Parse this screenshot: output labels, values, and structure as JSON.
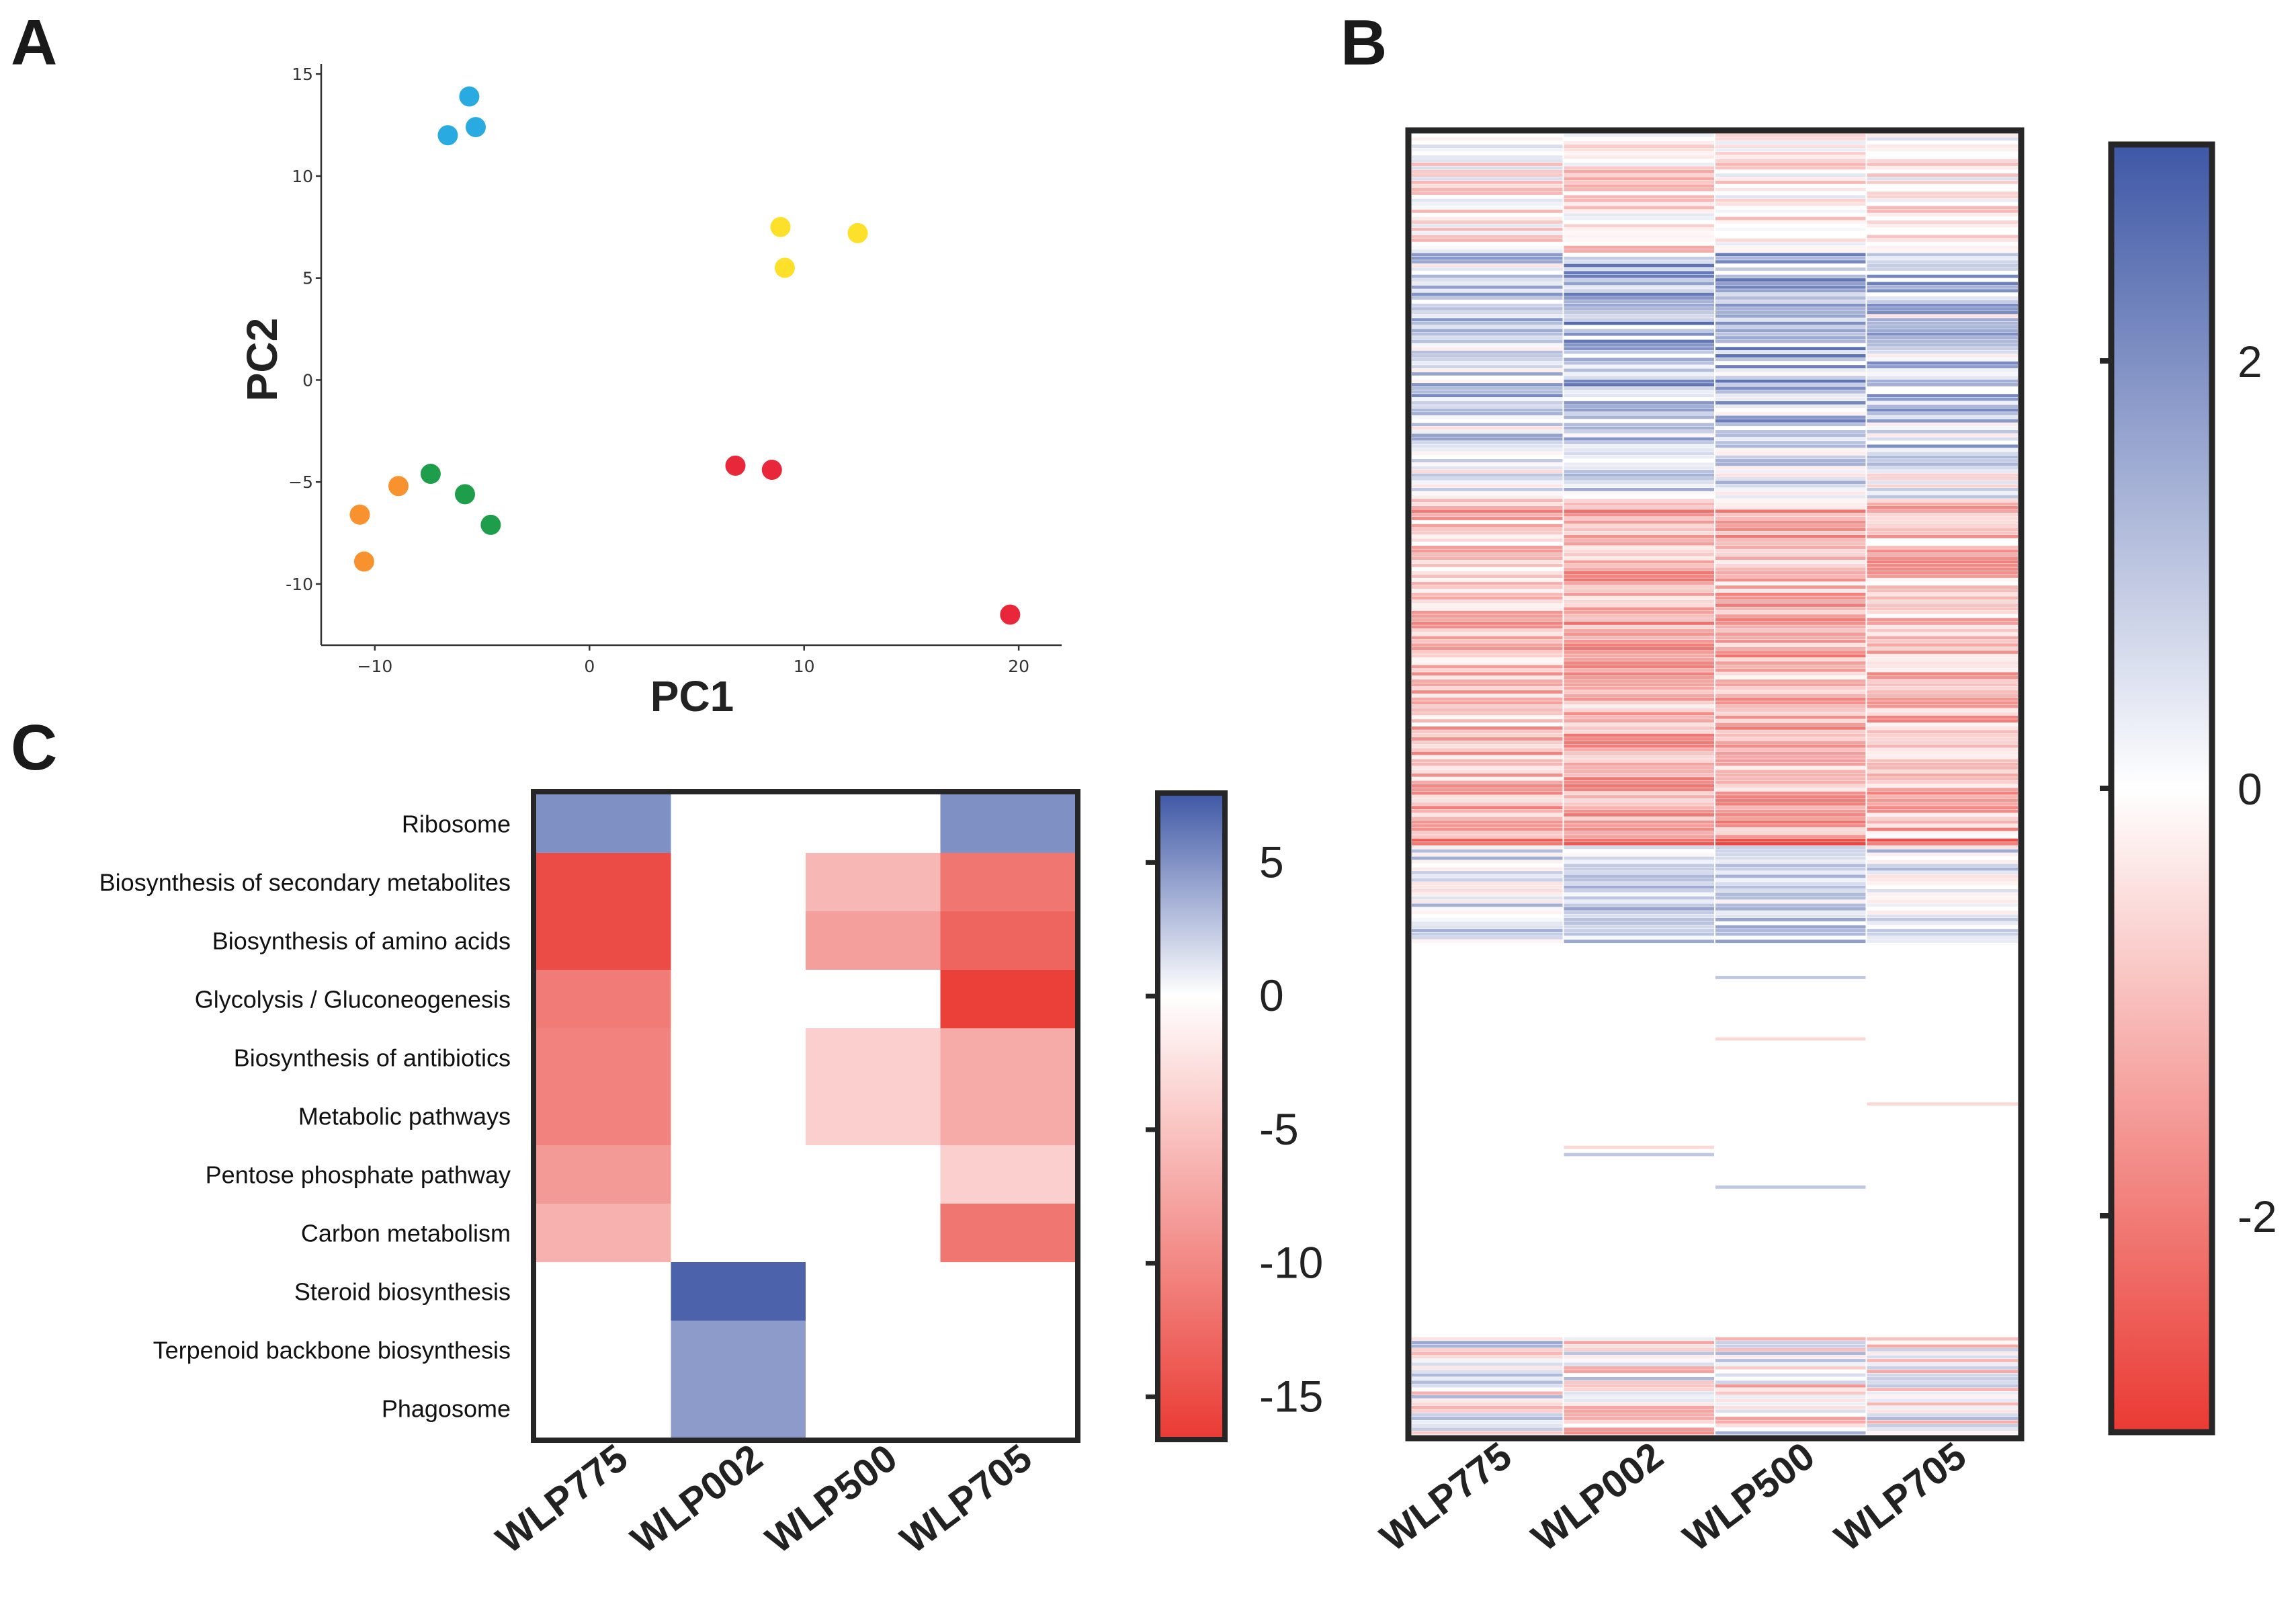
{
  "figure": {
    "panel_letters": [
      "A",
      "B",
      "C"
    ]
  },
  "colors": {
    "blue": "#3f58a6",
    "white": "#ffffff",
    "red": "#ea3a33",
    "frame": "#262626"
  },
  "chart_data": [
    {
      "panel": "A",
      "type": "scatter",
      "title": "",
      "xlabel": "PC1",
      "ylabel": "PC2",
      "xlim": [
        -12.5,
        22
      ],
      "ylim": [
        -13,
        15.5
      ],
      "xticks": [
        -10,
        0,
        10,
        20
      ],
      "xtick_labels": [
        "−10",
        "0",
        "10",
        "20"
      ],
      "yticks": [
        15,
        10,
        5,
        0,
        -5,
        -10
      ],
      "ytick_labels": [
        "15",
        "10",
        "5",
        "0",
        "−5",
        "-10"
      ],
      "legend": "none",
      "series": [
        {
          "name": "blue",
          "color": "#29abe2",
          "x": [
            -5.6,
            -6.6,
            -5.3
          ],
          "y": [
            13.9,
            12.0,
            12.4
          ]
        },
        {
          "name": "yellow",
          "color": "#fde02a",
          "x": [
            8.9,
            12.5,
            9.1
          ],
          "y": [
            7.5,
            7.2,
            5.5
          ]
        },
        {
          "name": "green",
          "color": "#1e9e4a",
          "x": [
            -7.4,
            -5.8,
            -4.6
          ],
          "y": [
            -4.6,
            -5.6,
            -7.1
          ]
        },
        {
          "name": "orange",
          "color": "#f7922f",
          "x": [
            -8.9,
            -10.7,
            -10.5
          ],
          "y": [
            -5.2,
            -6.6,
            -8.9
          ]
        },
        {
          "name": "red",
          "color": "#e8283a",
          "x": [
            6.8,
            8.5,
            19.6
          ],
          "y": [
            -4.2,
            -4.4,
            -11.5
          ]
        }
      ]
    },
    {
      "panel": "B",
      "type": "heatmap",
      "description_note": "Gene-level z-scores, one column per strain; rows rendered as stripes",
      "columns": [
        "WLP775",
        "WLP002",
        "WLP500",
        "WLP705"
      ],
      "colorbar": {
        "range": [
          -3,
          3
        ],
        "ticks": [
          2,
          0,
          -2
        ],
        "tick_labels": [
          "2",
          "0",
          "-2"
        ]
      },
      "n_rows": 360,
      "row_values": {
        "WLP775": "see strip data in script",
        "WLP002": "see strip data in script",
        "WLP500": "see strip data in script",
        "WLP705": "see strip data in script"
      }
    },
    {
      "panel": "C",
      "type": "heatmap",
      "rows": [
        "Ribosome",
        "Biosynthesis of secondary metabolites",
        "Biosynthesis of amino acids",
        "Glycolysis / Gluconeogenesis",
        "Biosynthesis of antibiotics",
        "Metabolic pathways",
        "Pentose phosphate pathway",
        "Carbon metabolism",
        "Steroid biosynthesis",
        "Terpenoid backbone biosynthesis",
        "Phagosome"
      ],
      "columns": [
        "WLP775",
        "WLP002",
        "WLP500",
        "WLP705"
      ],
      "values": [
        [
          5.0,
          0,
          0,
          5.0
        ],
        [
          -15.0,
          0,
          -6.0,
          -11.5
        ],
        [
          -15.0,
          0,
          -8.0,
          -13.0
        ],
        [
          -11.0,
          0,
          0,
          -16.0
        ],
        [
          -10.5,
          0,
          -4.0,
          -7.0
        ],
        [
          -10.5,
          0,
          -4.0,
          -7.0
        ],
        [
          -8.5,
          0,
          0,
          -4.0
        ],
        [
          -6.5,
          0,
          0,
          -11.5
        ],
        [
          0,
          7.0,
          0,
          0
        ],
        [
          0,
          4.5,
          0,
          0
        ],
        [
          0,
          4.5,
          0,
          0
        ]
      ],
      "colorbar": {
        "range": [
          -16.5,
          7.5
        ],
        "ticks": [
          5,
          0,
          -5,
          -10,
          -15
        ],
        "tick_labels": [
          "5",
          "0",
          "-5",
          "-10",
          "-15"
        ]
      }
    }
  ]
}
